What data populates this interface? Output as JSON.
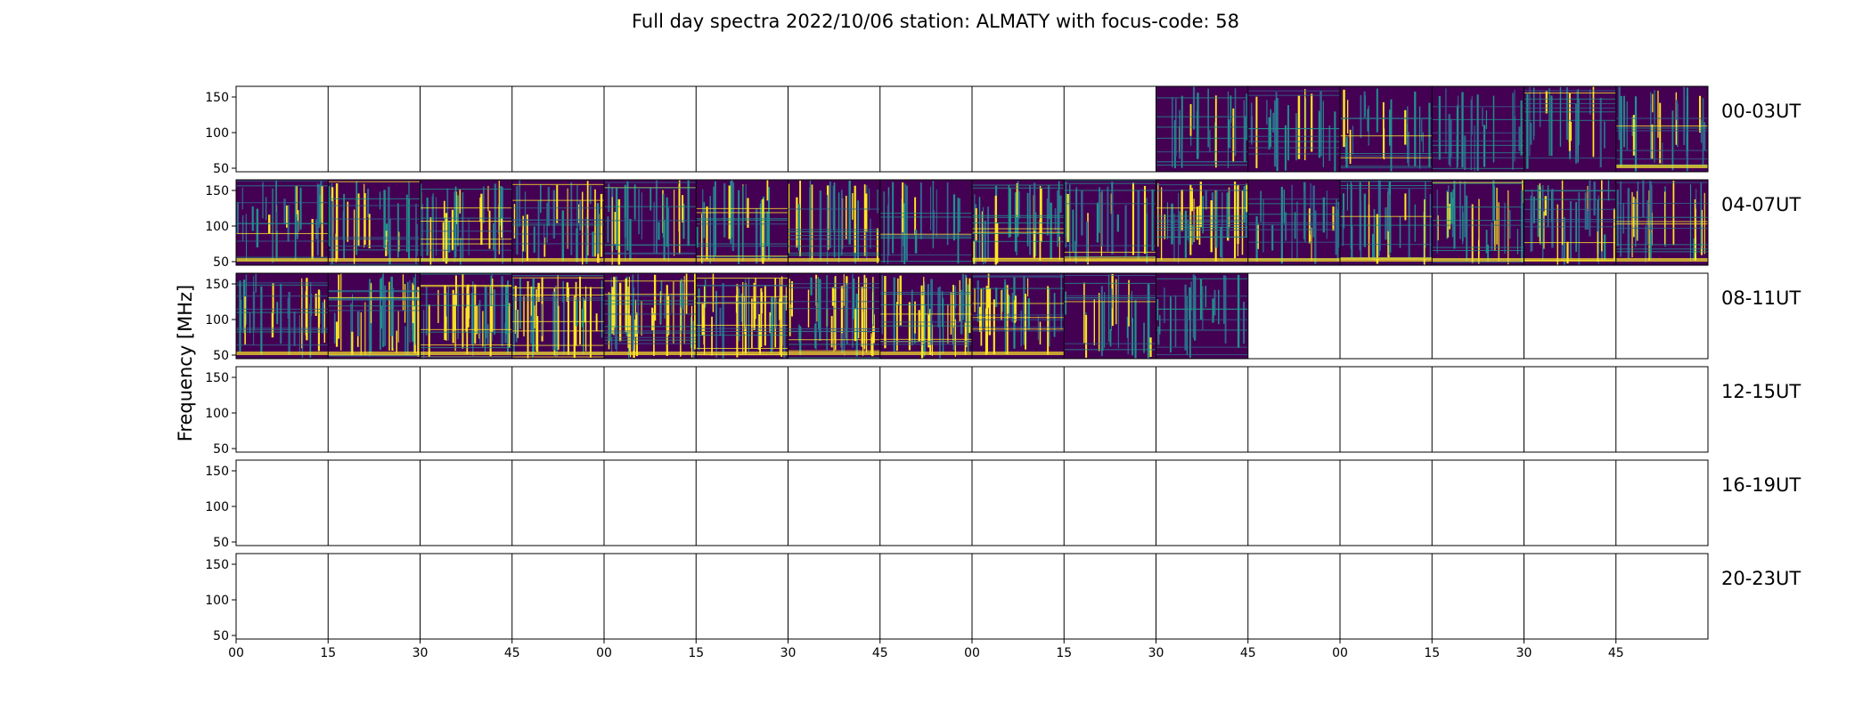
{
  "chart_data": {
    "type": "heatmap",
    "title": "Full day spectra 2022/10/06 station: ALMATY with focus-code: 58",
    "ylabel": "Frequency [MHz]",
    "ylim": [
      45,
      165
    ],
    "y_ticks": [
      50,
      100,
      150
    ],
    "x_tick_labels": [
      "00",
      "15",
      "30",
      "45",
      "00",
      "15",
      "30",
      "45",
      "00",
      "15",
      "30",
      "45",
      "00",
      "15",
      "30",
      "45"
    ],
    "panels_per_row": 16,
    "minutes_per_panel": 15,
    "colormap": [
      "#440154",
      "#31688e",
      "#21918c",
      "#35b779",
      "#fde725"
    ],
    "rows": [
      {
        "label": "00-03UT",
        "has_data": [
          false,
          false,
          false,
          false,
          false,
          false,
          false,
          false,
          false,
          false,
          true,
          true,
          true,
          true,
          true,
          true
        ]
      },
      {
        "label": "04-07UT",
        "has_data": [
          true,
          true,
          true,
          true,
          true,
          true,
          true,
          true,
          true,
          true,
          true,
          true,
          true,
          true,
          true,
          true
        ]
      },
      {
        "label": "08-11UT",
        "has_data": [
          true,
          true,
          true,
          true,
          true,
          true,
          true,
          true,
          true,
          true,
          true,
          false,
          false,
          false,
          false,
          false
        ]
      },
      {
        "label": "12-15UT",
        "has_data": [
          false,
          false,
          false,
          false,
          false,
          false,
          false,
          false,
          false,
          false,
          false,
          false,
          false,
          false,
          false,
          false
        ]
      },
      {
        "label": "16-19UT",
        "has_data": [
          false,
          false,
          false,
          false,
          false,
          false,
          false,
          false,
          false,
          false,
          false,
          false,
          false,
          false,
          false,
          false
        ]
      },
      {
        "label": "20-23UT",
        "has_data": [
          false,
          false,
          false,
          false,
          false,
          false,
          false,
          false,
          false,
          false,
          false,
          false,
          false,
          false,
          false,
          false
        ]
      }
    ],
    "intensity": [
      {
        "row": 0,
        "panel": 10,
        "level": 0.2
      },
      {
        "row": 0,
        "panel": 11,
        "level": 0.15
      },
      {
        "row": 0,
        "panel": 12,
        "level": 0.18
      },
      {
        "row": 0,
        "panel": 13,
        "level": 0.17
      },
      {
        "row": 0,
        "panel": 14,
        "level": 0.15
      },
      {
        "row": 0,
        "panel": 15,
        "level": 0.22
      },
      {
        "row": 1,
        "panel": 0,
        "level": 0.3
      },
      {
        "row": 1,
        "panel": 1,
        "level": 0.28
      },
      {
        "row": 1,
        "panel": 2,
        "level": 0.35
      },
      {
        "row": 1,
        "panel": 3,
        "level": 0.32
      },
      {
        "row": 1,
        "panel": 4,
        "level": 0.3
      },
      {
        "row": 1,
        "panel": 5,
        "level": 0.28
      },
      {
        "row": 1,
        "panel": 6,
        "level": 0.3
      },
      {
        "row": 1,
        "panel": 7,
        "level": 0.15
      },
      {
        "row": 1,
        "panel": 8,
        "level": 0.4
      },
      {
        "row": 1,
        "panel": 9,
        "level": 0.25
      },
      {
        "row": 1,
        "panel": 10,
        "level": 0.45
      },
      {
        "row": 1,
        "panel": 11,
        "level": 0.22
      },
      {
        "row": 1,
        "panel": 12,
        "level": 0.3
      },
      {
        "row": 1,
        "panel": 13,
        "level": 0.35
      },
      {
        "row": 1,
        "panel": 14,
        "level": 0.32
      },
      {
        "row": 1,
        "panel": 15,
        "level": 0.25
      },
      {
        "row": 2,
        "panel": 0,
        "level": 0.3
      },
      {
        "row": 2,
        "panel": 1,
        "level": 0.45
      },
      {
        "row": 2,
        "panel": 2,
        "level": 0.45
      },
      {
        "row": 2,
        "panel": 3,
        "level": 0.5
      },
      {
        "row": 2,
        "panel": 4,
        "level": 0.55
      },
      {
        "row": 2,
        "panel": 5,
        "level": 0.55
      },
      {
        "row": 2,
        "panel": 6,
        "level": 0.5
      },
      {
        "row": 2,
        "panel": 7,
        "level": 0.5
      },
      {
        "row": 2,
        "panel": 8,
        "level": 0.35
      },
      {
        "row": 2,
        "panel": 9,
        "level": 0.2
      },
      {
        "row": 2,
        "panel": 10,
        "level": 0.15
      }
    ]
  }
}
